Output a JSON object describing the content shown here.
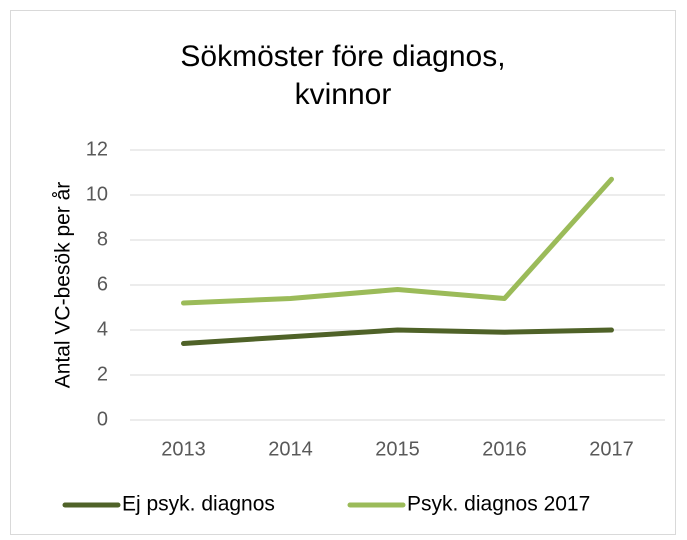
{
  "chart_data": {
    "type": "line",
    "title": "Sökmöster före diagnos, kvinnor",
    "y_label": "Antal VC-besök per år",
    "categories": [
      "2013",
      "2014",
      "2015",
      "2016",
      "2017"
    ],
    "series": [
      {
        "name": "Ej psyk. diagnos",
        "color": "#4f6228",
        "values": [
          3.4,
          3.7,
          4.0,
          3.9,
          4.0
        ]
      },
      {
        "name": "Psyk. diagnos 2017",
        "color": "#9bbb59",
        "values": [
          5.2,
          5.4,
          5.8,
          5.4,
          10.7
        ]
      }
    ],
    "ylim": [
      0,
      12
    ],
    "yticks": [
      0,
      2,
      4,
      6,
      8,
      10,
      12
    ],
    "grid": true,
    "legend": "bottom"
  }
}
